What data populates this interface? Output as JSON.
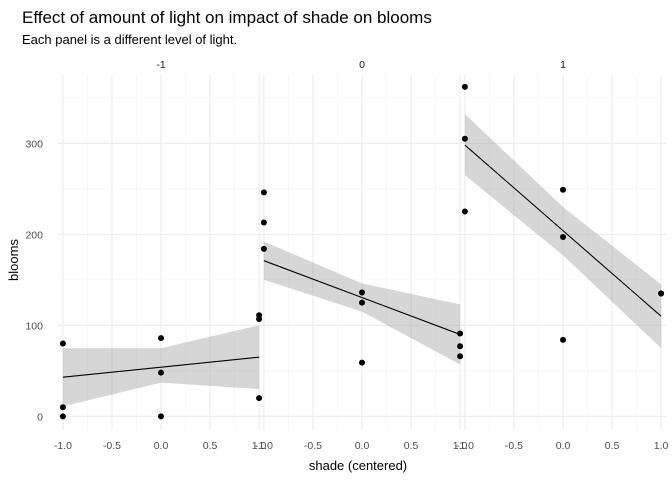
{
  "chart_data": {
    "type": "scatter",
    "title": "Effect of amount of light on impact of shade on blooms",
    "subtitle": "Each panel is a different level of light.",
    "xlabel": "shade (centered)",
    "ylabel": "blooms",
    "xlim": [
      -1.05,
      1.05
    ],
    "ylim": [
      -15,
      375
    ],
    "x_ticks": [
      -1.0,
      -0.5,
      0.0,
      0.5,
      1.0
    ],
    "x_tick_labels": [
      "-1.0",
      "-0.5",
      "0.0",
      "0.5",
      "1.0"
    ],
    "y_ticks": [
      0,
      100,
      200,
      300
    ],
    "y_tick_labels": [
      "0",
      "100",
      "200",
      "300"
    ],
    "grid": true,
    "legend": "none",
    "smooth": "linear fit with confidence band",
    "panels": [
      {
        "label": "-1",
        "points": [
          {
            "x": -1,
            "y": 80
          },
          {
            "x": -1,
            "y": 10
          },
          {
            "x": -1,
            "y": 0
          },
          {
            "x": 0,
            "y": 86
          },
          {
            "x": 0,
            "y": 48
          },
          {
            "x": 0,
            "y": 0
          },
          {
            "x": 1,
            "y": 111
          },
          {
            "x": 1,
            "y": 107
          },
          {
            "x": 1,
            "y": 20
          }
        ],
        "fit": {
          "y_at_xmin": 43,
          "y_at_xmax": 65
        },
        "band": {
          "lower": [
            11,
            37,
            30
          ],
          "upper": [
            75,
            75,
            100
          ]
        }
      },
      {
        "label": "0",
        "points": [
          {
            "x": -1,
            "y": 246
          },
          {
            "x": -1,
            "y": 213
          },
          {
            "x": -1,
            "y": 184
          },
          {
            "x": 0,
            "y": 136
          },
          {
            "x": 0,
            "y": 125
          },
          {
            "x": 0,
            "y": 59
          },
          {
            "x": 1,
            "y": 91
          },
          {
            "x": 1,
            "y": 77
          },
          {
            "x": 1,
            "y": 66
          }
        ],
        "fit": {
          "y_at_xmin": 171,
          "y_at_xmax": 90
        },
        "band": {
          "lower": [
            150,
            115,
            57
          ],
          "upper": [
            192,
            146,
            123
          ]
        }
      },
      {
        "label": "1",
        "points": [
          {
            "x": -1,
            "y": 362
          },
          {
            "x": -1,
            "y": 305
          },
          {
            "x": -1,
            "y": 225
          },
          {
            "x": 0,
            "y": 249
          },
          {
            "x": 0,
            "y": 197
          },
          {
            "x": 0,
            "y": 84
          },
          {
            "x": 1,
            "y": 135
          },
          {
            "x": 1,
            "y": 135
          }
        ],
        "fit": {
          "y_at_xmin": 298,
          "y_at_xmax": 110
        },
        "band": {
          "lower": [
            265,
            177,
            75
          ],
          "upper": [
            332,
            230,
            145
          ]
        }
      }
    ],
    "colors": {
      "points": "#000000",
      "fit_line": "#000000",
      "band": "#999999",
      "grid": "#ebebeb"
    }
  }
}
